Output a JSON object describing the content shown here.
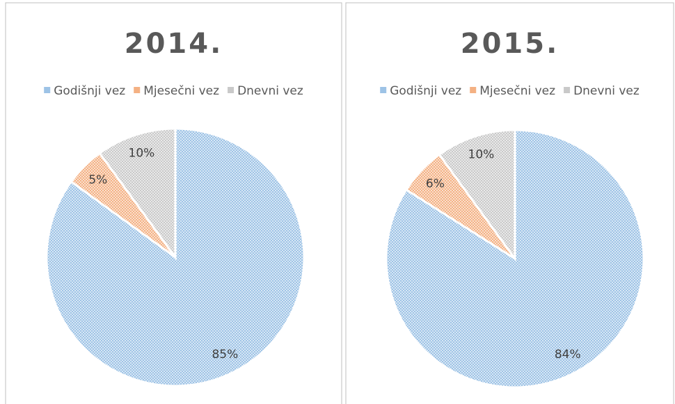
{
  "chart_data": [
    {
      "type": "pie",
      "title": "2014.",
      "categories": [
        "Godišnji vez",
        "Mjesečni vez",
        "Dnevni vez"
      ],
      "values": [
        85,
        5,
        10
      ],
      "value_labels": [
        "85%",
        "5%",
        "10%"
      ],
      "colors": [
        "#9dc3e6",
        "#f4b183",
        "#c9c9c9"
      ],
      "legend": "top"
    },
    {
      "type": "pie",
      "title": "2015.",
      "categories": [
        "Godišnji vez",
        "Mjesečni vez",
        "Dnevni vez"
      ],
      "values": [
        84,
        6,
        10
      ],
      "value_labels": [
        "84%",
        "6%",
        "10%"
      ],
      "colors": [
        "#9dc3e6",
        "#f4b183",
        "#c9c9c9"
      ],
      "legend": "top"
    }
  ]
}
